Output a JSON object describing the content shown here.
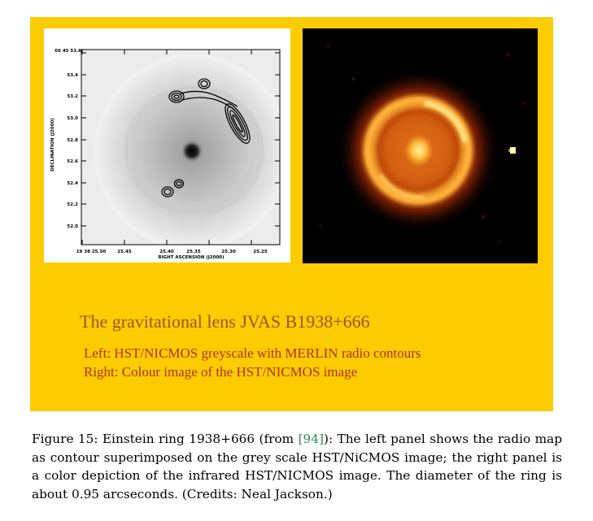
{
  "poster": {
    "title": "The gravitational lens JVAS B1938+666",
    "left_desc": "Left: HST/NICMOS greyscale with MERLIN radio contours",
    "right_desc": "Right: Colour image of the HST/NICMOS image"
  },
  "left_plot": {
    "ylabel": "DECLINATION (J2000)",
    "xlabel": "RIGHT ASCENSION (J2000)",
    "y_ticks": [
      "66 45 53.6",
      "53.4",
      "53.2",
      "53.0",
      "52.8",
      "52.6",
      "52.4",
      "52.2",
      "52.0"
    ],
    "x_ticks": [
      "19 38 25.50",
      "25.45",
      "25.40",
      "25.35",
      "25.30",
      "25.25"
    ]
  },
  "caption": {
    "prefix": "Figure 15: Einstein ring 1938+666 (from ",
    "ref": "[94]",
    "suffix": "): The left panel shows the radio map as contour superimposed on the grey scale HST/NiCMOS image; the right panel is a color depiction of the infrared HST/NICMOS image. The diameter of the ring is about 0.95 arcseconds. (Credits: Neal Jackson.)"
  },
  "colors": {
    "poster_bg": "#fccc00",
    "title_color": "#a0521e",
    "desc_color": "#b03010",
    "ref_color": "#2e8b57"
  }
}
